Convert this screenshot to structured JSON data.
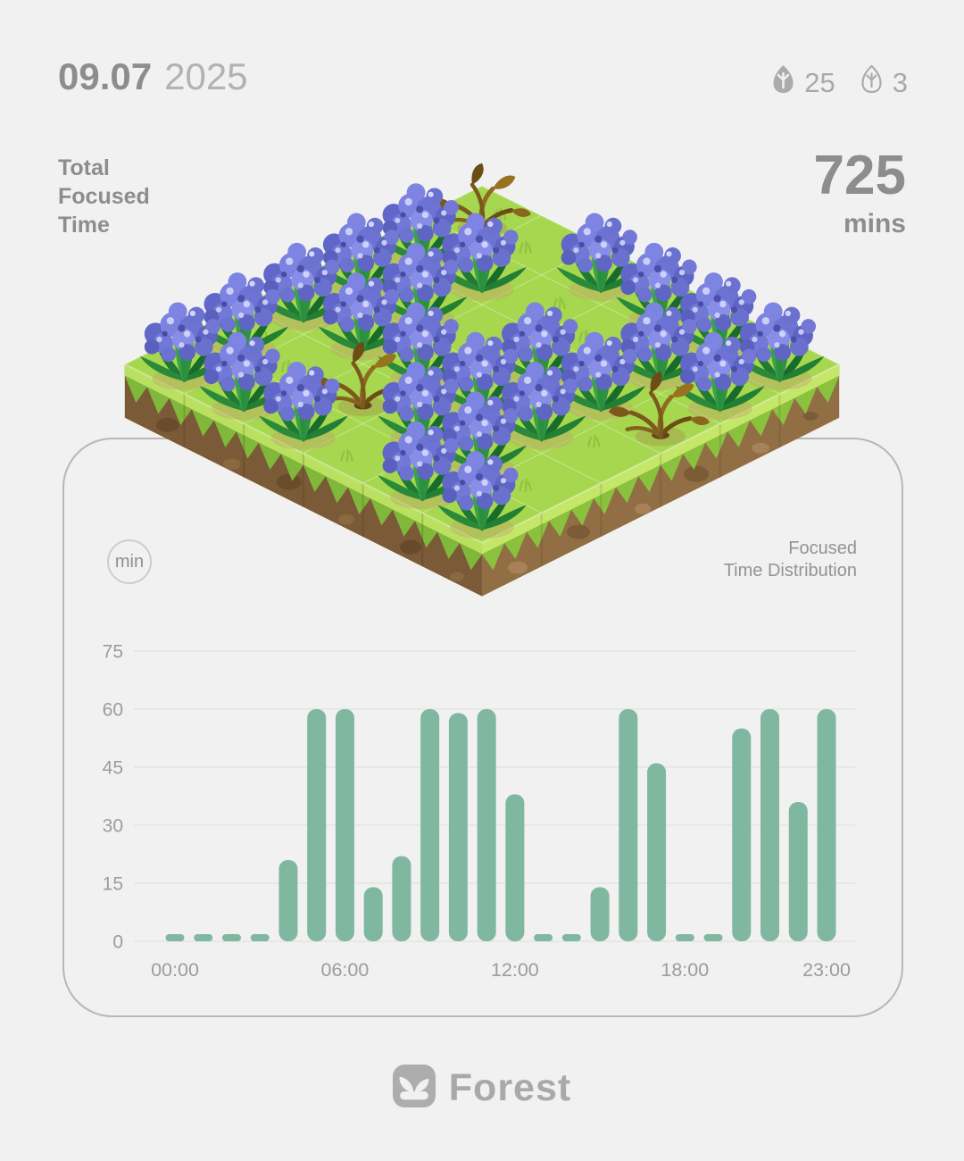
{
  "header": {
    "date_day": "09.07",
    "date_year": "2025",
    "alive_count": "25",
    "withered_count": "3"
  },
  "summary": {
    "label_line1": "Total",
    "label_line2": "Focused",
    "label_line3": "Time",
    "value": "725",
    "unit": "mins"
  },
  "chart": {
    "unit_badge": "min",
    "title_line1": "Focused",
    "title_line2": "Time Distribution"
  },
  "chart_data": {
    "type": "bar",
    "title": "Focused Time Distribution",
    "ylabel_unit": "min",
    "x_hours": [
      "00:00",
      "01:00",
      "02:00",
      "03:00",
      "04:00",
      "05:00",
      "06:00",
      "07:00",
      "08:00",
      "09:00",
      "10:00",
      "11:00",
      "12:00",
      "13:00",
      "14:00",
      "15:00",
      "16:00",
      "17:00",
      "18:00",
      "19:00",
      "20:00",
      "21:00",
      "22:00",
      "23:00"
    ],
    "values": [
      0,
      0,
      0,
      0,
      21,
      60,
      60,
      14,
      22,
      60,
      59,
      60,
      38,
      0,
      0,
      14,
      60,
      46,
      0,
      0,
      55,
      60,
      36,
      60
    ],
    "total": 725,
    "y_ticks": [
      0,
      15,
      30,
      45,
      60,
      75
    ],
    "ylim": [
      0,
      75
    ],
    "x_tick_labels": [
      {
        "hour": 0,
        "label": "00:00"
      },
      {
        "hour": 6,
        "label": "06:00"
      },
      {
        "hour": 12,
        "label": "12:00"
      },
      {
        "hour": 18,
        "label": "18:00"
      },
      {
        "hour": 23,
        "label": "23:00"
      }
    ],
    "grid": true,
    "legend": "none",
    "bar_color": "#80b7a0"
  },
  "garden": {
    "rows": 6,
    "cols": 6,
    "grid": [
      "D.FFFF",
      "FF..FF",
      "FF.FFD",
      "FFFFF.",
      "F.DFF.",
      "FFF.FF"
    ],
    "legend": {
      "F": "flower",
      "D": "withered-plant",
      ".": "empty-tile"
    },
    "alive_total": 25,
    "withered_total": 3
  },
  "footer": {
    "app_name": "Forest"
  },
  "colors": {
    "background": "#f1f1f2",
    "text_strong": "#8d8d8d",
    "text_light": "#b2b2b2",
    "text_axis": "#9c9c9c",
    "bar": "#80b7a0",
    "gridline": "#e4e4e5",
    "card_border": "#b7b7b7",
    "grass_top": "#a6d74f",
    "dirt_left": "#7b5a37",
    "dirt_right": "#916e44",
    "flower": "#7177d5",
    "withered": "#8a6720",
    "icon_gray": "#ababab"
  }
}
